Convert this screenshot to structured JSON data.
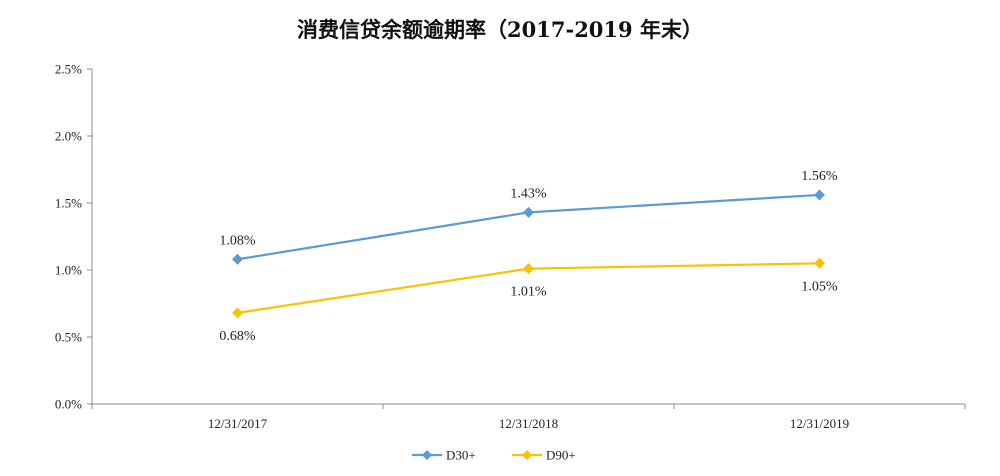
{
  "chart_data": {
    "type": "line",
    "title": "消费信贷余额逾期率（2017-2019 年末）",
    "categories": [
      "12/31/2017",
      "12/31/2018",
      "12/31/2019"
    ],
    "y_ticks": [
      "0.0%",
      "0.5%",
      "1.0%",
      "1.5%",
      "2.0%",
      "2.5%"
    ],
    "ylim": [
      0,
      2.5
    ],
    "y_unit": "%",
    "grid": false,
    "legend_position": "bottom",
    "series": [
      {
        "name": "D30+",
        "color": "#5B9BD5",
        "values": [
          1.08,
          1.43,
          1.56
        ],
        "labels": [
          "1.08%",
          "1.43%",
          "1.56%"
        ],
        "label_position": "above"
      },
      {
        "name": "D90+",
        "color": "#FFC000",
        "values": [
          0.68,
          1.01,
          1.05
        ],
        "labels": [
          "0.68%",
          "1.01%",
          "1.05%"
        ],
        "label_position": "below"
      }
    ]
  }
}
